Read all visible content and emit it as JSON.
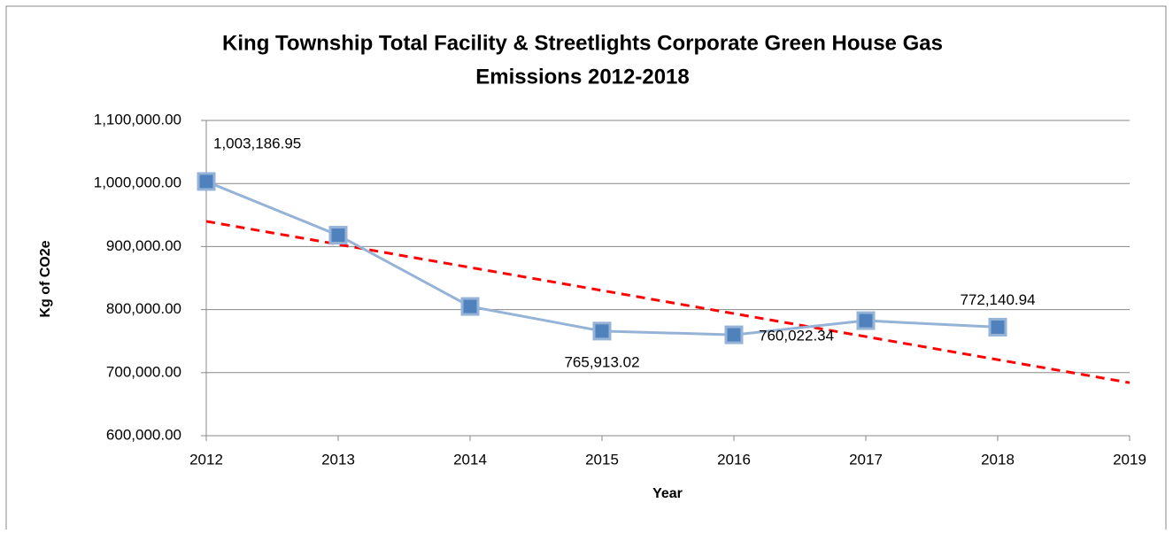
{
  "chart_data": {
    "type": "line",
    "title": "King Township Total Facility  & Streetlights Corporate Green House Gas",
    "subtitle": "Emissions 2012-2018",
    "xlabel": "Year",
    "ylabel": "Kg of CO2e",
    "x": [
      2012,
      2013,
      2014,
      2015,
      2016,
      2017,
      2018
    ],
    "series": [
      {
        "name": null,
        "color": "#95b3d7",
        "marker_color": "#4f81bd",
        "values": [
          1003186.95,
          918000,
          805000,
          765913.02,
          760022.34,
          782500,
          772140.94
        ],
        "value_labels": [
          "1,003,186.95",
          null,
          null,
          "765,913.02",
          "760,022.34",
          null,
          "772,140.94"
        ]
      }
    ],
    "trendline": {
      "x": [
        2012,
        2019
      ],
      "values": [
        940000,
        684000
      ],
      "color": "#ff0000"
    },
    "xlim": [
      2012,
      2019
    ],
    "xticks": [
      2012,
      2013,
      2014,
      2015,
      2016,
      2017,
      2018,
      2019
    ],
    "ylim": [
      600000,
      1100000
    ],
    "yticks": [
      {
        "value": 600000,
        "label": "600,000.00"
      },
      {
        "value": 700000,
        "label": "700,000.00"
      },
      {
        "value": 800000,
        "label": "800,000.00"
      },
      {
        "value": 900000,
        "label": "900,000.00"
      },
      {
        "value": 1000000,
        "label": "1,000,000.00"
      },
      {
        "value": 1100000,
        "label": "1,100,000.00"
      }
    ],
    "grid": true
  }
}
